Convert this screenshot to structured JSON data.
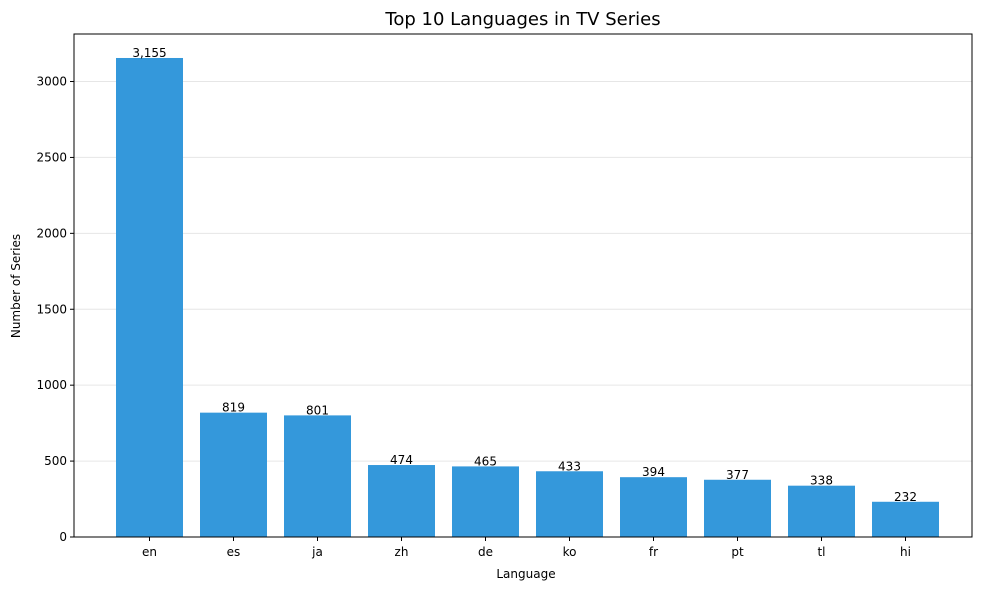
{
  "chart_data": {
    "type": "bar",
    "title": "Top 10 Languages in TV Series",
    "xlabel": "Language",
    "ylabel": "Number of Series",
    "categories": [
      "en",
      "es",
      "ja",
      "zh",
      "de",
      "ko",
      "fr",
      "pt",
      "tl",
      "hi"
    ],
    "values": [
      3155,
      819,
      801,
      474,
      465,
      433,
      394,
      377,
      338,
      232
    ],
    "value_labels": [
      "3,155",
      "819",
      "801",
      "474",
      "465",
      "433",
      "394",
      "377",
      "338",
      "232"
    ],
    "yticks": [
      0,
      500,
      1000,
      1500,
      2000,
      2500,
      3000
    ],
    "ylim": [
      0,
      3313
    ],
    "grid": "y-axis, light gray",
    "legend": "none",
    "bar_color": "#3498db"
  }
}
